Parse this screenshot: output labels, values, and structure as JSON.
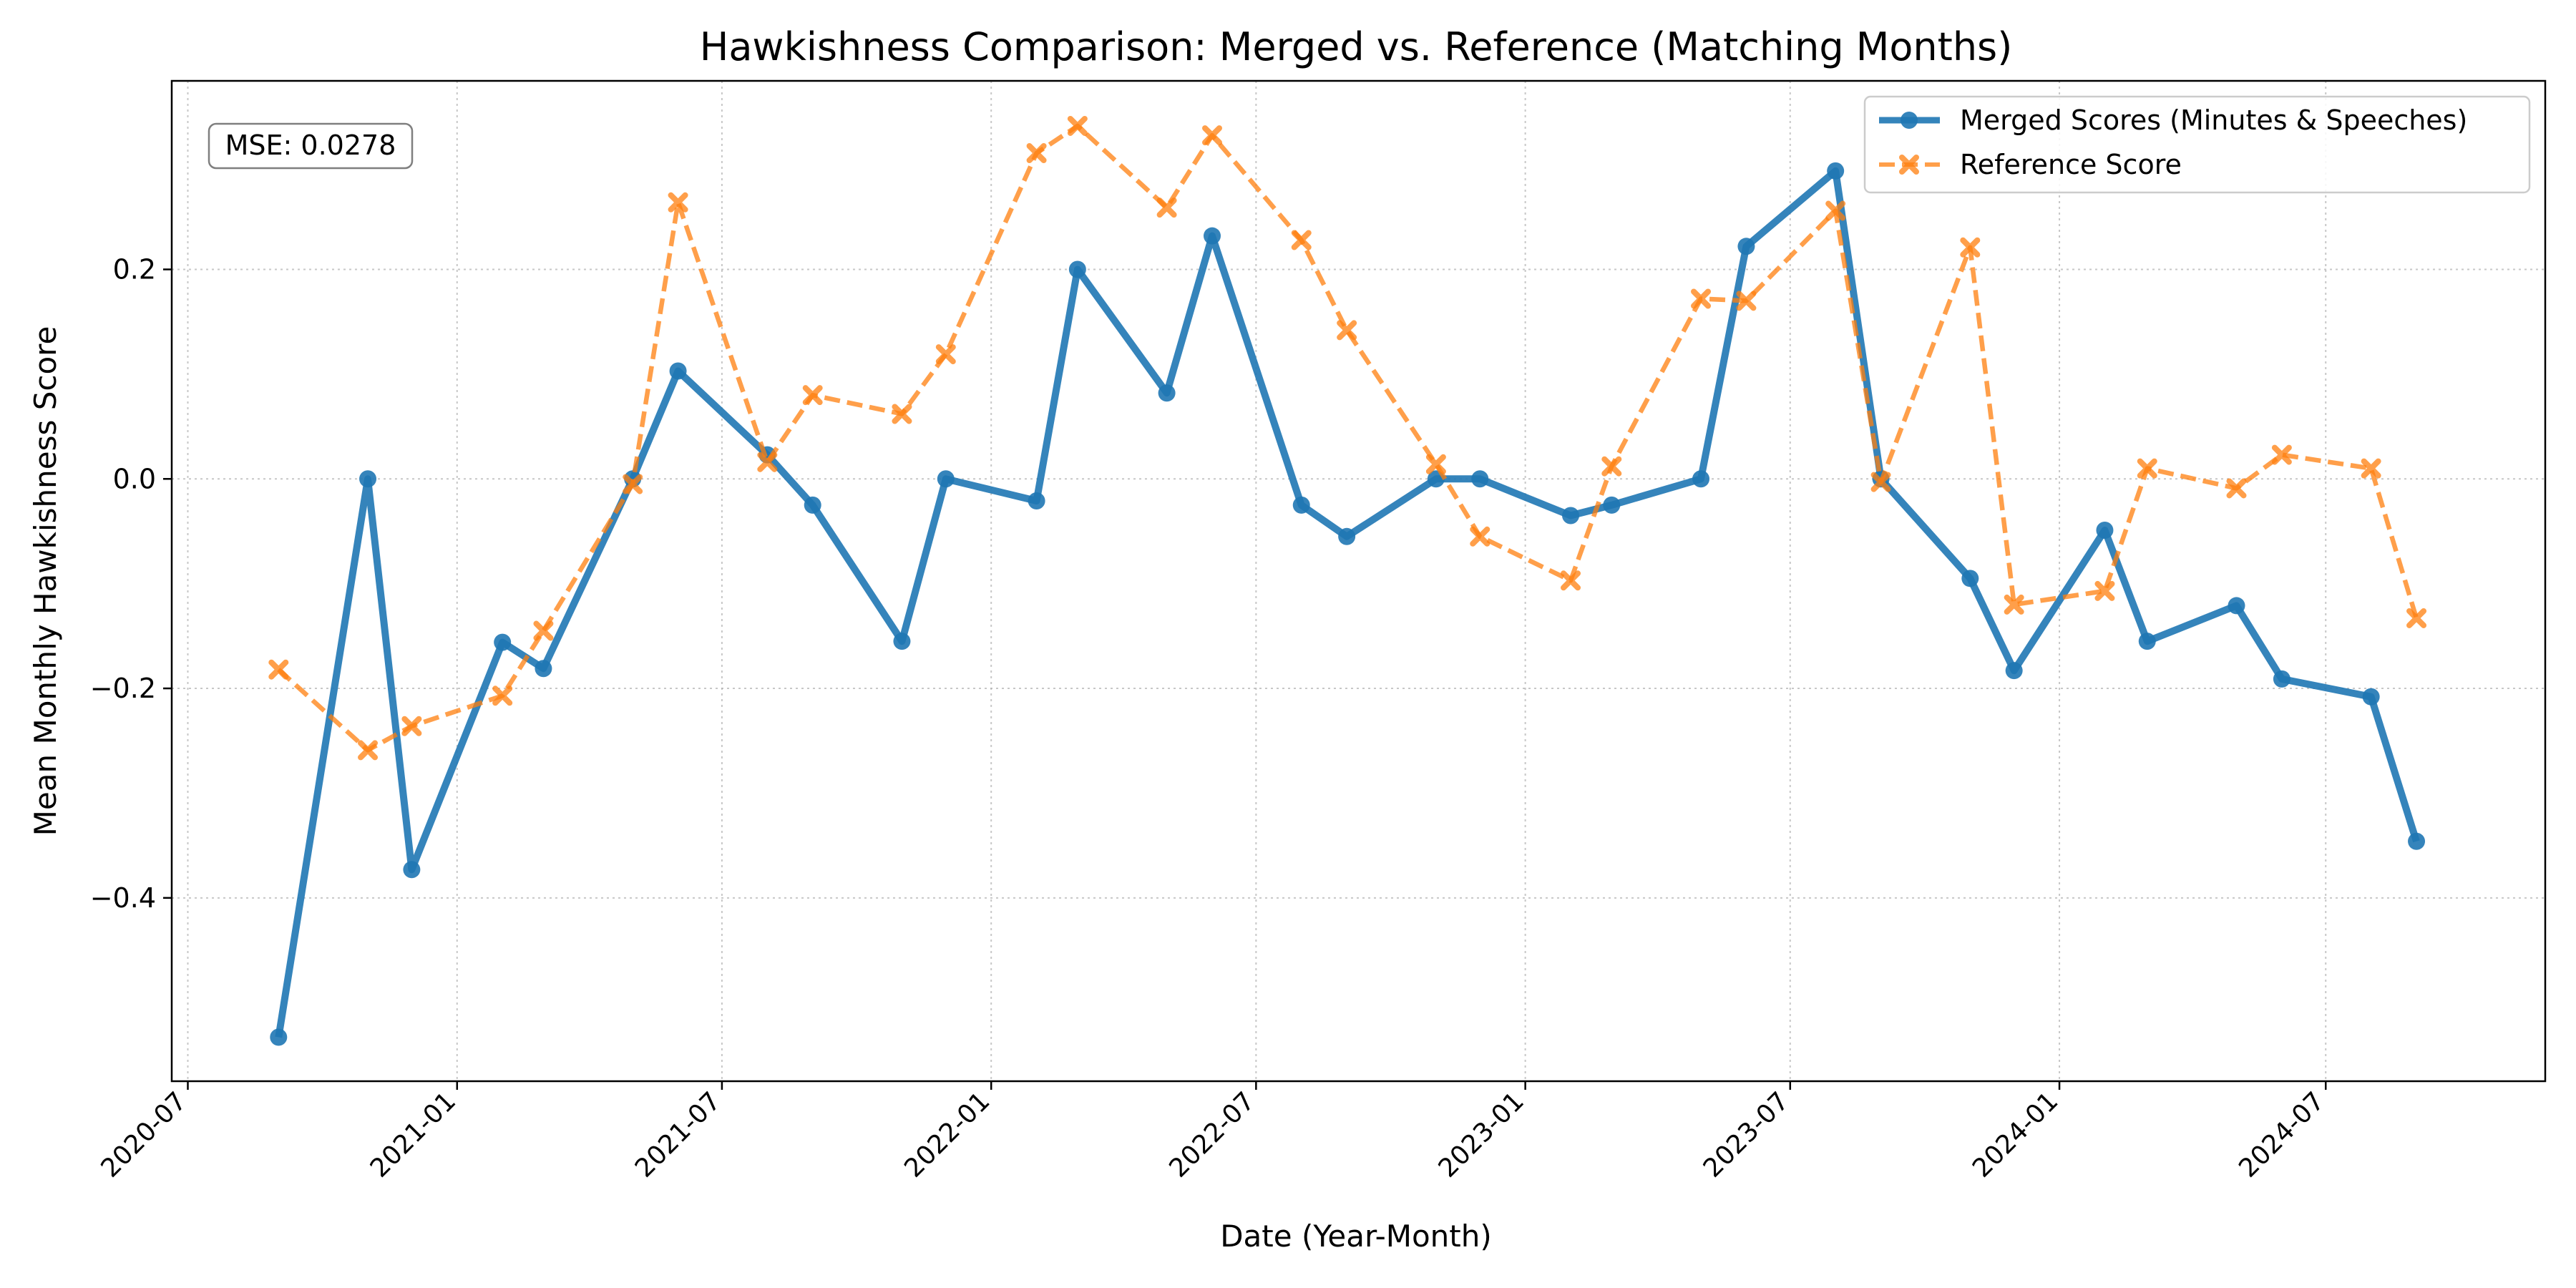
{
  "chart_data": {
    "type": "line",
    "title": "Hawkishness Comparison: Merged vs. Reference (Matching Months)",
    "xlabel": "Date (Year-Month)",
    "ylabel": "Mean Monthly Hawkishness Score",
    "x_ticks": [
      "2020-07",
      "2021-01",
      "2021-07",
      "2022-01",
      "2022-07",
      "2023-01",
      "2023-07",
      "2024-01",
      "2024-07"
    ],
    "y_ticks": [
      -0.4,
      -0.2,
      0.0,
      0.2
    ],
    "y_tick_labels": [
      "−0.4",
      "−0.2",
      "0.0",
      "0.2"
    ],
    "xlim": [
      "2020-06-20",
      "2024-11-28"
    ],
    "ylim": [
      -0.575,
      0.38
    ],
    "grid": true,
    "legend_position": "top-right",
    "annotation": "MSE: 0.0278",
    "series": [
      {
        "name": "Merged Scores (Minutes & Speeches)",
        "color": "#1f77b4",
        "marker": "circle",
        "linestyle": "solid",
        "points": [
          {
            "x": "2020-09",
            "y": -0.533
          },
          {
            "x": "2020-11",
            "y": 0.0
          },
          {
            "x": "2020-12",
            "y": -0.373
          },
          {
            "x": "2021-02",
            "y": -0.156
          },
          {
            "x": "2021-03",
            "y": -0.181
          },
          {
            "x": "2021-05",
            "y": 0.0
          },
          {
            "x": "2021-06",
            "y": 0.103
          },
          {
            "x": "2021-08",
            "y": 0.023
          },
          {
            "x": "2021-09",
            "y": -0.025
          },
          {
            "x": "2021-11",
            "y": -0.155
          },
          {
            "x": "2021-12",
            "y": 0.0
          },
          {
            "x": "2022-02",
            "y": -0.021
          },
          {
            "x": "2022-03",
            "y": 0.2
          },
          {
            "x": "2022-05",
            "y": 0.082
          },
          {
            "x": "2022-06",
            "y": 0.232
          },
          {
            "x": "2022-08",
            "y": -0.025
          },
          {
            "x": "2022-09",
            "y": -0.055
          },
          {
            "x": "2022-11",
            "y": 0.0
          },
          {
            "x": "2022-12",
            "y": 0.0
          },
          {
            "x": "2023-02",
            "y": -0.035
          },
          {
            "x": "2023-03",
            "y": -0.025
          },
          {
            "x": "2023-05",
            "y": 0.0
          },
          {
            "x": "2023-06",
            "y": 0.222
          },
          {
            "x": "2023-08",
            "y": 0.294
          },
          {
            "x": "2023-09",
            "y": 0.0
          },
          {
            "x": "2023-11",
            "y": -0.095
          },
          {
            "x": "2023-12",
            "y": -0.183
          },
          {
            "x": "2024-02",
            "y": -0.049
          },
          {
            "x": "2024-03",
            "y": -0.155
          },
          {
            "x": "2024-05",
            "y": -0.121
          },
          {
            "x": "2024-06",
            "y": -0.191
          },
          {
            "x": "2024-08",
            "y": -0.208
          },
          {
            "x": "2024-09",
            "y": -0.346
          }
        ]
      },
      {
        "name": "Reference Score",
        "color": "#ff7f0e",
        "marker": "x",
        "linestyle": "dashed",
        "points": [
          {
            "x": "2020-09",
            "y": -0.182
          },
          {
            "x": "2020-11",
            "y": -0.259
          },
          {
            "x": "2020-12",
            "y": -0.236
          },
          {
            "x": "2021-02",
            "y": -0.207
          },
          {
            "x": "2021-03",
            "y": -0.145
          },
          {
            "x": "2021-05",
            "y": -0.005
          },
          {
            "x": "2021-06",
            "y": 0.264
          },
          {
            "x": "2021-08",
            "y": 0.016
          },
          {
            "x": "2021-09",
            "y": 0.08
          },
          {
            "x": "2021-11",
            "y": 0.062
          },
          {
            "x": "2021-12",
            "y": 0.119
          },
          {
            "x": "2022-02",
            "y": 0.311
          },
          {
            "x": "2022-03",
            "y": 0.337
          },
          {
            "x": "2022-05",
            "y": 0.259
          },
          {
            "x": "2022-06",
            "y": 0.328
          },
          {
            "x": "2022-08",
            "y": 0.228
          },
          {
            "x": "2022-09",
            "y": 0.142
          },
          {
            "x": "2022-11",
            "y": 0.014
          },
          {
            "x": "2022-12",
            "y": -0.055
          },
          {
            "x": "2023-02",
            "y": -0.097
          },
          {
            "x": "2023-03",
            "y": 0.012
          },
          {
            "x": "2023-05",
            "y": 0.172
          },
          {
            "x": "2023-06",
            "y": 0.17
          },
          {
            "x": "2023-08",
            "y": 0.256
          },
          {
            "x": "2023-09",
            "y": -0.003
          },
          {
            "x": "2023-11",
            "y": 0.221
          },
          {
            "x": "2023-12",
            "y": -0.12
          },
          {
            "x": "2024-02",
            "y": -0.107
          },
          {
            "x": "2024-03",
            "y": 0.01
          },
          {
            "x": "2024-05",
            "y": -0.009
          },
          {
            "x": "2024-06",
            "y": 0.023
          },
          {
            "x": "2024-08",
            "y": 0.01
          },
          {
            "x": "2024-09",
            "y": -0.133
          }
        ]
      }
    ]
  }
}
